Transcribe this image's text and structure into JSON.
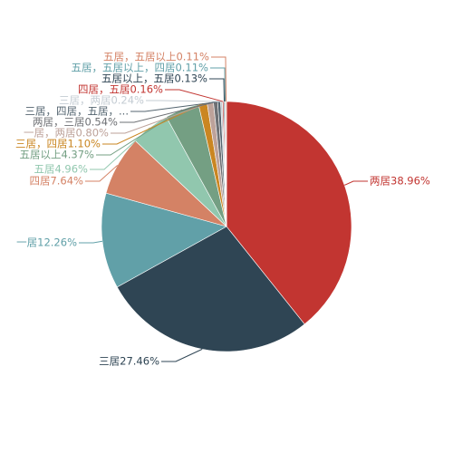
{
  "chart_data": {
    "type": "pie",
    "title": "",
    "slices": [
      {
        "name": "两居",
        "value": 38.96,
        "color": "#c23531"
      },
      {
        "name": "三居",
        "value": 27.46,
        "color": "#2f4554"
      },
      {
        "name": "一居",
        "value": 12.26,
        "color": "#61a0a8"
      },
      {
        "name": "四居",
        "value": 7.64,
        "color": "#d48265"
      },
      {
        "name": "五居",
        "value": 4.96,
        "color": "#91c7ae"
      },
      {
        "name": "五居以上",
        "value": 4.37,
        "color": "#749f83"
      },
      {
        "name": "三居，四居",
        "value": 1.1,
        "color": "#ca8622"
      },
      {
        "name": "一居，两居",
        "value": 0.8,
        "color": "#bda29a"
      },
      {
        "name": "两居，三居",
        "value": 0.54,
        "color": "#6e7074"
      },
      {
        "name": "三居，四居，五居，...",
        "value": 0.37,
        "color": "#546570"
      },
      {
        "name": "三居，两居",
        "value": 0.24,
        "color": "#c4ccd3"
      },
      {
        "name": "四居，五居",
        "value": 0.16,
        "color": "#c23531"
      },
      {
        "name": "五居以上，五居",
        "value": 0.13,
        "color": "#2f4554"
      },
      {
        "name": "五居，五居以上，四居",
        "value": 0.11,
        "color": "#61a0a8"
      },
      {
        "name": "五居，五居以上",
        "value": 0.11,
        "color": "#d48265"
      }
    ],
    "labels": [
      "两居38.96%",
      "三居27.46%",
      "一居12.26%",
      "四居7.64%",
      "五居4.96%",
      "五居以上4.37%",
      "三居，四居1.10%",
      "一居，两居0.80%",
      "两居，三居0.54%",
      "三居，四居，五居，...",
      "三居，两居0.24%",
      "四居，五居0.16%",
      "五居以上，五居0.13%",
      "五居，五居以上，四居0.11%",
      "五居，五居以上0.11%"
    ]
  }
}
